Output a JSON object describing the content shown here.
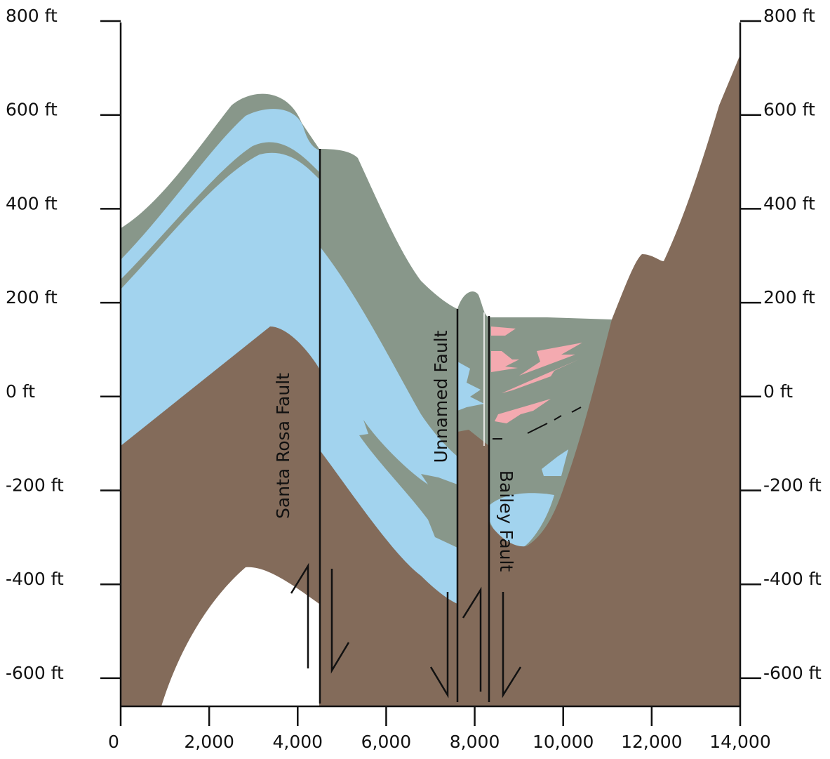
{
  "left_axis": {
    "ticks": [
      "800 ft",
      "600 ft",
      "400 ft",
      "200 ft",
      "0 ft",
      "-200 ft",
      "-400 ft",
      "-600 ft"
    ]
  },
  "right_axis": {
    "ticks": [
      "800 ft",
      "600 ft",
      "400 ft",
      "200 ft",
      "0 ft",
      "-200 ft",
      "-400 ft",
      "-600 ft"
    ]
  },
  "bottom_axis": {
    "ticks": [
      "0",
      "2,000",
      "4,000",
      "6,000",
      "8,000",
      "10,000",
      "12,000",
      "14,000"
    ]
  },
  "faults": [
    {
      "label": "Santa Rosa Fault"
    },
    {
      "label": "Unnamed Fault"
    },
    {
      "label": "Bailey Fault"
    }
  ]
}
